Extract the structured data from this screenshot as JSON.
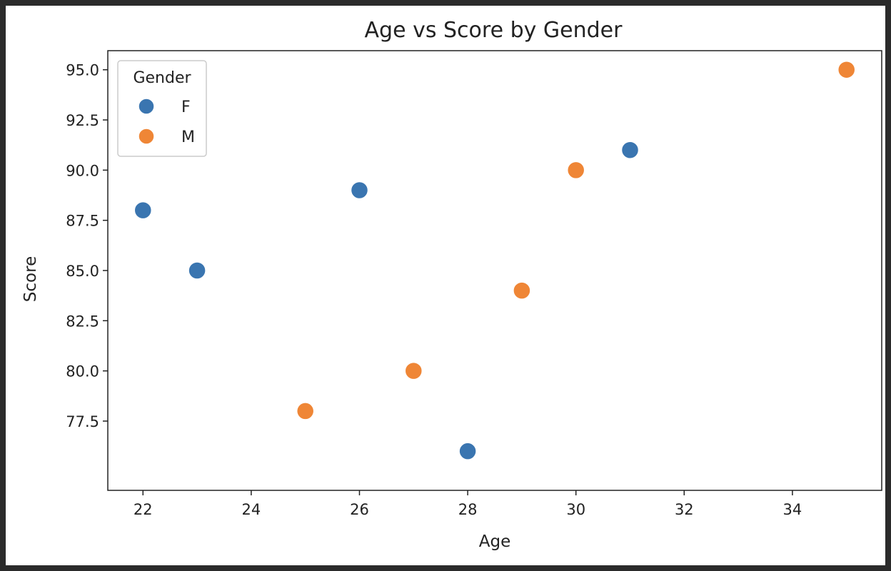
{
  "chart_data": {
    "type": "scatter",
    "title": "Age vs Score by Gender",
    "xlabel": "Age",
    "ylabel": "Score",
    "xlim": [
      21.35,
      35.65
    ],
    "ylim": [
      74.05,
      95.95
    ],
    "xticks": [
      22,
      24,
      26,
      28,
      30,
      32,
      34
    ],
    "yticks": [
      77.5,
      80.0,
      82.5,
      85.0,
      87.5,
      90.0,
      92.5,
      95.0
    ],
    "grid": false,
    "legend": {
      "title": "Gender",
      "placement": "top-left",
      "entries": [
        "F",
        "M"
      ]
    },
    "series": [
      {
        "name": "F",
        "color": "#3a75b0",
        "points": [
          {
            "x": 22,
            "y": 88
          },
          {
            "x": 23,
            "y": 85
          },
          {
            "x": 26,
            "y": 89
          },
          {
            "x": 28,
            "y": 76
          },
          {
            "x": 31,
            "y": 91
          }
        ]
      },
      {
        "name": "M",
        "color": "#ef8636",
        "points": [
          {
            "x": 25,
            "y": 78
          },
          {
            "x": 27,
            "y": 80
          },
          {
            "x": 29,
            "y": 84
          },
          {
            "x": 30,
            "y": 90
          },
          {
            "x": 35,
            "y": 95
          }
        ]
      }
    ]
  }
}
